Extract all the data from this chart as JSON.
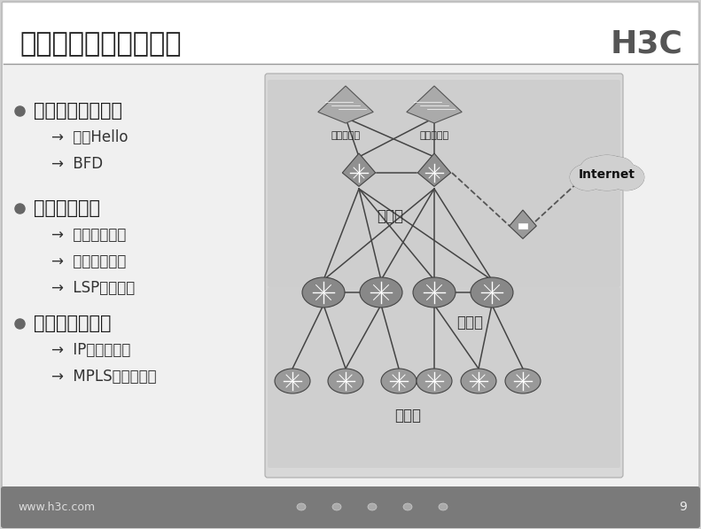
{
  "title": "网络路由快速恢复需求",
  "h3c_logo": "H3C",
  "bullet_points": [
    {
      "main": "邻居失效快速侦测",
      "subs": [
        "快速Hello",
        "BFD"
      ]
    },
    {
      "main": "路由快速收敛",
      "subs": [
        "增量路由计算",
        "部分路由计算",
        "LSP快速扩散"
      ]
    },
    {
      "main": "快速重路由技术",
      "subs": [
        "IP快速重路由",
        "MPLS快速重路由"
      ]
    }
  ],
  "layer_labels": [
    "核心层",
    "汇聚层",
    "接入层"
  ],
  "server_labels": [
    "业务服务器",
    "办公服务器"
  ],
  "internet_label": "Internet",
  "footer_left": "www.h3c.com",
  "footer_page": "9",
  "slide_bg": "#f2f2f2",
  "header_bg": "#ffffff",
  "diagram_bg": "#d8d8d8",
  "diagram_inner_bg": "#cccccc",
  "footer_bg": "#7a7a7a",
  "line_color": "#444444",
  "router_color": "#888888",
  "router_color_light": "#aaaaaa",
  "cloud_color": "#d0d0d0",
  "title_color": "#222222",
  "text_color": "#333333",
  "h3c_color": "#555555",
  "core_switch_color": "#777777",
  "server_rack_color": "#999999",
  "outer_border_color": "#bbbbbb",
  "sep_line_color": "#999999"
}
